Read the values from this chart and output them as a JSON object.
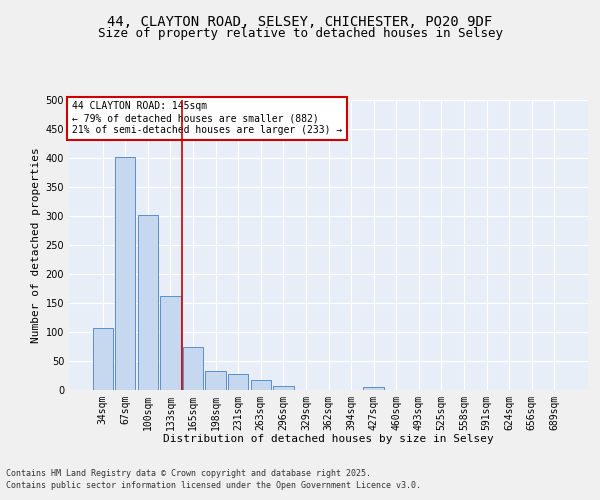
{
  "title_line1": "44, CLAYTON ROAD, SELSEY, CHICHESTER, PO20 9DF",
  "title_line2": "Size of property relative to detached houses in Selsey",
  "xlabel": "Distribution of detached houses by size in Selsey",
  "ylabel": "Number of detached properties",
  "categories": [
    "34sqm",
    "67sqm",
    "100sqm",
    "133sqm",
    "165sqm",
    "198sqm",
    "231sqm",
    "263sqm",
    "296sqm",
    "329sqm",
    "362sqm",
    "394sqm",
    "427sqm",
    "460sqm",
    "493sqm",
    "525sqm",
    "558sqm",
    "591sqm",
    "624sqm",
    "656sqm",
    "689sqm"
  ],
  "values": [
    107,
    401,
    302,
    162,
    75,
    33,
    28,
    18,
    7,
    0,
    0,
    0,
    5,
    0,
    0,
    0,
    0,
    0,
    0,
    0,
    0
  ],
  "bar_color": "#c5d8f0",
  "bar_edge_color": "#5b8fc9",
  "background_color": "#e8eef8",
  "fig_background": "#f0f0f0",
  "vline_color": "#cc0000",
  "vline_x_index": 3.5,
  "annotation_text": "44 CLAYTON ROAD: 145sqm\n← 79% of detached houses are smaller (882)\n21% of semi-detached houses are larger (233) →",
  "annotation_box_edgecolor": "#cc0000",
  "footer_line1": "Contains HM Land Registry data © Crown copyright and database right 2025.",
  "footer_line2": "Contains public sector information licensed under the Open Government Licence v3.0.",
  "ylim": [
    0,
    500
  ],
  "yticks": [
    0,
    50,
    100,
    150,
    200,
    250,
    300,
    350,
    400,
    450,
    500
  ],
  "grid_color": "#ffffff",
  "title_fontsize": 10,
  "subtitle_fontsize": 9,
  "axis_label_fontsize": 8,
  "tick_fontsize": 7,
  "annotation_fontsize": 7,
  "footer_fontsize": 6
}
